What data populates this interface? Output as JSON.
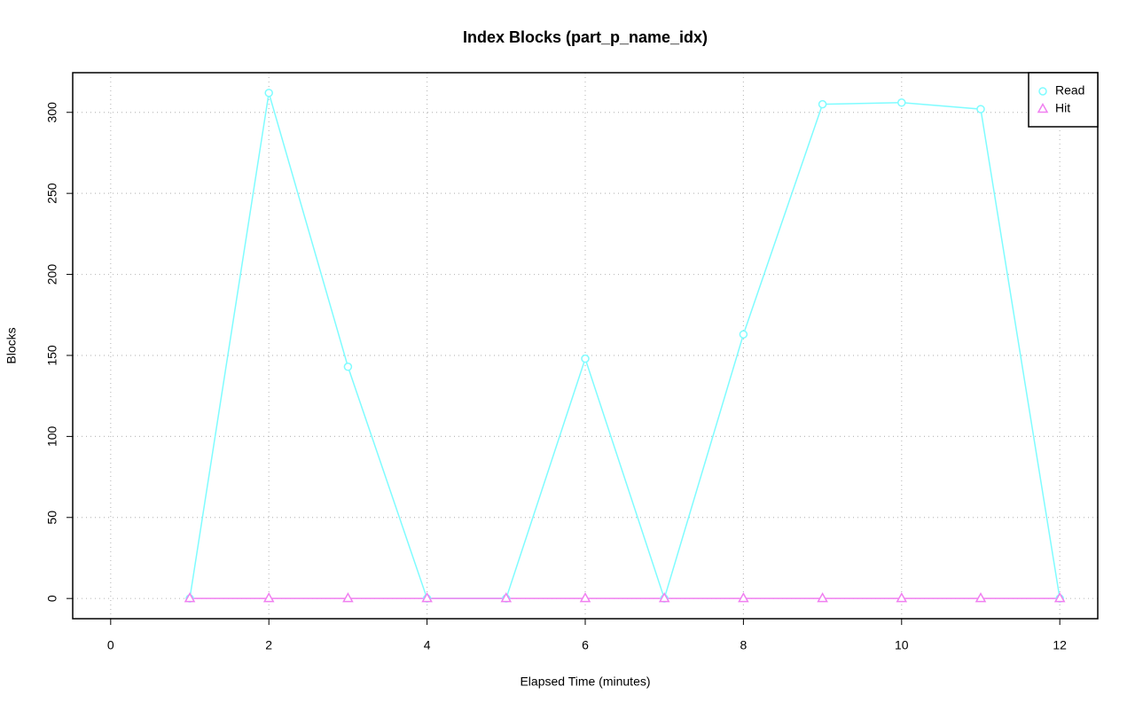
{
  "chart_data": {
    "type": "line",
    "title": "Index Blocks (part_p_name_idx)",
    "x_label": "Elapsed Time (minutes)",
    "y_label": "Blocks",
    "x": [
      1,
      2,
      3,
      4,
      5,
      6,
      7,
      8,
      9,
      10,
      11,
      12
    ],
    "series": [
      {
        "name": "Read",
        "color": "#7ffcff",
        "marker": "circle",
        "values": [
          0,
          312,
          143,
          0,
          0,
          148,
          0,
          163,
          305,
          306,
          302,
          0
        ]
      },
      {
        "name": "Hit",
        "color": "#f07ff0",
        "marker": "triangle",
        "values": [
          0,
          0,
          0,
          0,
          0,
          0,
          0,
          0,
          0,
          0,
          0,
          0
        ]
      }
    ],
    "xlim": [
      -0.48,
      12.48
    ],
    "xticks": [
      0,
      2,
      4,
      6,
      8,
      10,
      12
    ],
    "ylim": [
      -12.48,
      324.48
    ],
    "yticks": [
      0,
      50,
      100,
      150,
      200,
      250,
      300
    ],
    "grid": true,
    "legend": "topright"
  }
}
